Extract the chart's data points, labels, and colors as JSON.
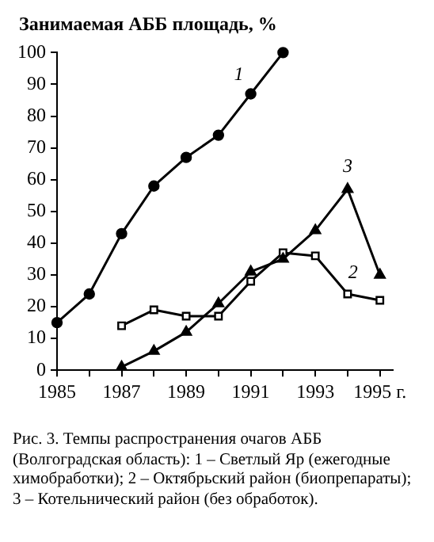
{
  "chart_data": {
    "type": "line",
    "ylabel": "Занимаемая АББ площадь, %",
    "series": [
      {
        "name": "1",
        "color": "#000000",
        "marker": "circle",
        "x": [
          1985,
          1986,
          1987,
          1988,
          1989,
          1990,
          1991,
          1992
        ],
        "values": [
          15,
          24,
          43,
          58,
          67,
          74,
          87,
          100
        ]
      },
      {
        "name": "2",
        "color": "#000000",
        "marker": "square",
        "x": [
          1987,
          1988,
          1989,
          1990,
          1991,
          1992,
          1993,
          1994,
          1995
        ],
        "values": [
          14,
          19,
          17,
          17,
          28,
          37,
          36,
          24,
          22
        ]
      },
      {
        "name": "3",
        "color": "#000000",
        "marker": "triangle",
        "x": [
          1987,
          1988,
          1989,
          1990,
          1991,
          1992,
          1993,
          1994,
          1995
        ],
        "values": [
          1,
          6,
          12,
          21,
          31,
          35,
          44,
          57,
          30
        ]
      }
    ],
    "xlim": [
      1985,
      1995.4
    ],
    "xticks": [
      1985,
      {
        "value": 1986,
        "label": null
      },
      1987,
      {
        "value": 1988,
        "label": null
      },
      1989,
      {
        "value": 1990,
        "label": null
      },
      1991,
      {
        "value": 1992,
        "label": null
      },
      1993,
      {
        "value": 1994,
        "label": null
      },
      {
        "value": 1995,
        "label": "1995 г."
      }
    ],
    "ylim": [
      0,
      100
    ],
    "yticks": [
      0,
      10,
      20,
      30,
      40,
      50,
      60,
      70,
      80,
      90,
      100
    ],
    "grid": false,
    "legend": false,
    "annotations": [
      "Рис. 3. Темпы распространения очагов АББ (Волгоградская область): 1 – Светлый Яр (ежегодные химобработки); 2 – Октябрьский район (биопрепараты); 3 – Котельнический район (без обработок)."
    ]
  }
}
